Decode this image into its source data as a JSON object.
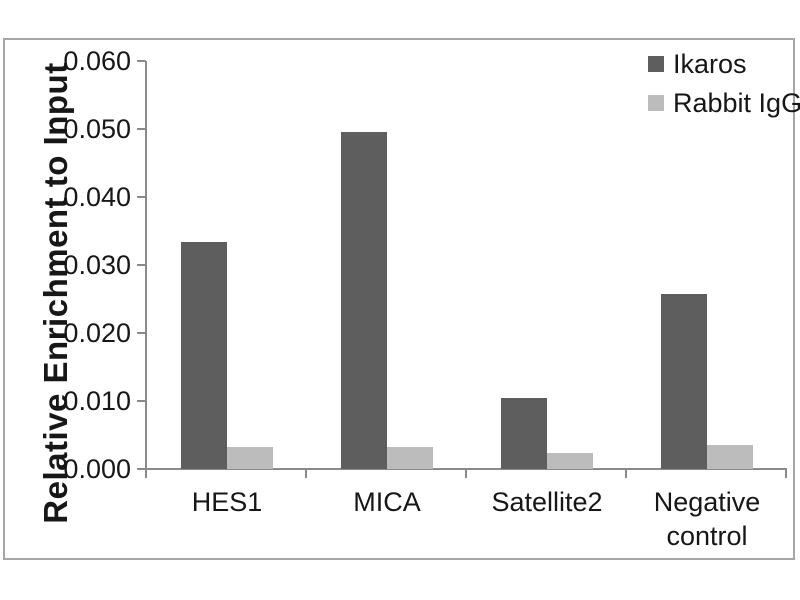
{
  "chart_data": {
    "type": "bar",
    "title": "",
    "xlabel": "",
    "ylabel": "Relative Enrichment to Input",
    "categories": [
      "HES1",
      "MICA",
      "Satellite2",
      "Negative control"
    ],
    "series": [
      {
        "name": "Ikaros",
        "color": "#5e5e5e",
        "values": [
          0.0334,
          0.0496,
          0.0105,
          0.0258
        ]
      },
      {
        "name": "Rabbit IgG",
        "color": "#bcbcbc",
        "values": [
          0.0033,
          0.0032,
          0.0024,
          0.0036
        ]
      }
    ],
    "ylim": [
      0,
      0.06
    ],
    "ytick_step": 0.01,
    "ytick_labels": [
      "0.000",
      "0.010",
      "0.020",
      "0.030",
      "0.040",
      "0.050",
      "0.060"
    ],
    "grid": false,
    "legend_position": "top-right",
    "colors": {
      "axis": "#8a8a8a",
      "figure_border": "#a6a6a6",
      "text": "#171717",
      "background": "#ffffff"
    }
  }
}
